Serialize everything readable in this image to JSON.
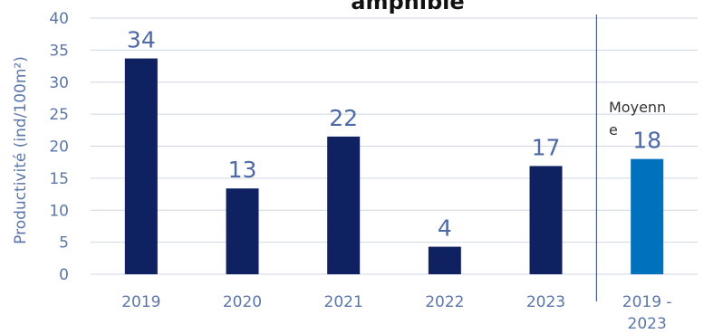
{
  "chart_data": {
    "type": "bar",
    "title": "amphibie",
    "ylabel": "Productivité (ind/100m²)",
    "xlabel": "",
    "ylim": [
      0,
      40
    ],
    "yticks": [
      0,
      5,
      10,
      15,
      20,
      25,
      30,
      35,
      40
    ],
    "grid": true,
    "categories": [
      "2019",
      "2020",
      "2021",
      "2022",
      "2023",
      "2019 - 2023"
    ],
    "values": [
      33.7,
      13.4,
      21.5,
      4.3,
      16.9,
      18
    ],
    "data_labels": [
      "34",
      "13",
      "22",
      "4",
      "17",
      "18"
    ],
    "annotation": "Moyenne",
    "colors": {
      "bar": "#0f2160",
      "highlight_bar": "#0071bc",
      "separator": "#243a72",
      "grid": "#cfd6e4"
    }
  }
}
